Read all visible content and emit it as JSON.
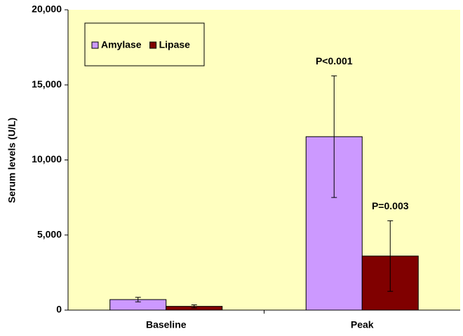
{
  "chart_data": {
    "type": "bar",
    "ylabel": "Serum levels (U/L)",
    "categories": [
      "Baseline",
      "Peak"
    ],
    "series": [
      {
        "name": "Amylase",
        "color": "#cc99ff",
        "values": [
          700,
          11550
        ],
        "errors": [
          150,
          4050
        ]
      },
      {
        "name": "Lipase",
        "color": "#800000",
        "values": [
          250,
          3600
        ],
        "errors": [
          100,
          2350
        ]
      }
    ],
    "annotations": [
      "P<0.001",
      "P=0.003"
    ],
    "ylim": [
      0,
      20000
    ],
    "yticks": [
      0,
      {
        "value": 5000,
        "label": "5,000"
      },
      {
        "value": 10000,
        "label": "10,000"
      },
      {
        "value": 15000,
        "label": "15,000"
      },
      {
        "value": 20000,
        "label": "20,000"
      }
    ],
    "background": "#ffffc0",
    "legend": "upper left"
  }
}
